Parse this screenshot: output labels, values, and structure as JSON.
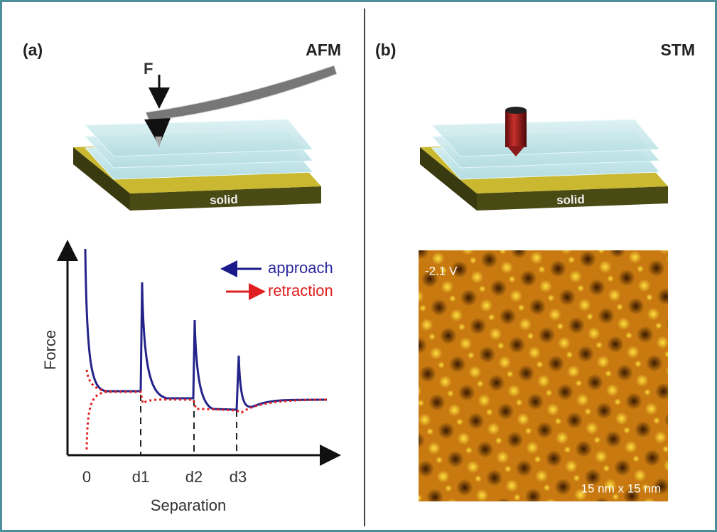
{
  "panels": [
    {
      "label": "(a)",
      "title": "AFM",
      "force_label": "F",
      "substrate": "solid",
      "legend": [
        "approach",
        "retraction"
      ],
      "y_axis": "Force",
      "x_axis": "Separation",
      "x_marks": [
        "0",
        "d1",
        "d2",
        "d3"
      ]
    },
    {
      "label": "(b)",
      "title": "STM",
      "substrate": "solid",
      "image_bias": "-2.1 V",
      "image_scale": "15 nm x 15 nm"
    }
  ]
}
